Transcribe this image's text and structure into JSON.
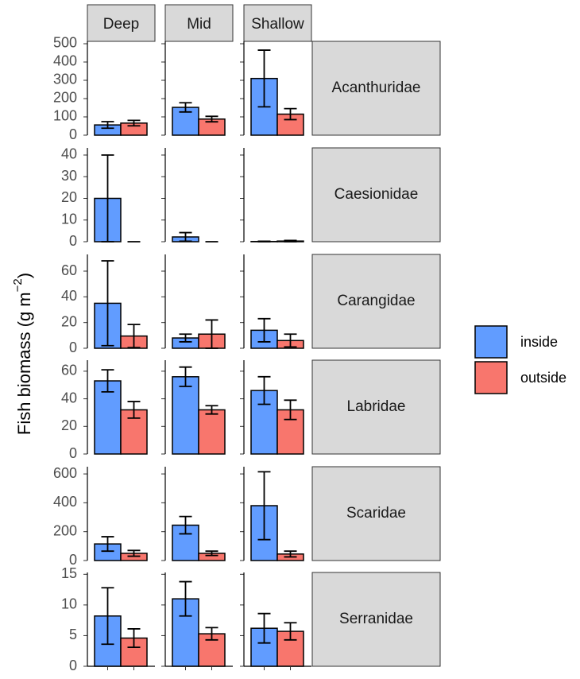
{
  "chart_data": {
    "type": "bar",
    "ylabel": [
      "Fish biomass (g m",
      "−2",
      ")"
    ],
    "columns": [
      "Deep",
      "Mid",
      "Shallow"
    ],
    "series": [
      {
        "name": "inside",
        "color": "#619cff"
      },
      {
        "name": "outside",
        "color": "#f8766d"
      }
    ],
    "panels": [
      {
        "name": "Acanthuridae",
        "ylim": [
          0,
          513
        ],
        "yticks": [
          0,
          100,
          200,
          300,
          400,
          500
        ],
        "values": [
          [
            56,
            152,
            310
          ],
          [
            66,
            88,
            115
          ]
        ],
        "errors": [
          [
            18,
            25,
            155
          ],
          [
            15,
            15,
            30
          ]
        ]
      },
      {
        "name": "Caesionidae",
        "ylim": [
          0,
          43.3
        ],
        "yticks": [
          0,
          10,
          20,
          30,
          40
        ],
        "values": [
          [
            20,
            2.2,
            0.1
          ],
          [
            0,
            0,
            0.3
          ]
        ],
        "errors": [
          [
            20,
            2,
            0.1
          ],
          [
            0,
            0,
            0.3
          ]
        ]
      },
      {
        "name": "Carangidae",
        "ylim": [
          0,
          73
        ],
        "yticks": [
          0,
          20,
          40,
          60
        ],
        "values": [
          [
            35,
            8,
            14
          ],
          [
            9.5,
            11,
            6
          ]
        ],
        "errors": [
          [
            33,
            3,
            9
          ],
          [
            9,
            11,
            5
          ]
        ]
      },
      {
        "name": "Labridae",
        "ylim": [
          0,
          68
        ],
        "yticks": [
          0,
          20,
          40,
          60
        ],
        "values": [
          [
            53,
            56,
            46
          ],
          [
            32,
            32,
            32
          ]
        ],
        "errors": [
          [
            8,
            7,
            10
          ],
          [
            6,
            3,
            7
          ]
        ]
      },
      {
        "name": "Scaridae",
        "ylim": [
          0,
          650
        ],
        "yticks": [
          0,
          200,
          400,
          600
        ],
        "values": [
          [
            115,
            245,
            380
          ],
          [
            50,
            50,
            45
          ]
        ],
        "errors": [
          [
            50,
            60,
            235
          ],
          [
            20,
            15,
            20
          ]
        ]
      },
      {
        "name": "Serranidae",
        "ylim": [
          0,
          15.3
        ],
        "yticks": [
          0,
          5,
          10,
          15
        ],
        "values": [
          [
            8.2,
            11,
            6.2
          ],
          [
            4.6,
            5.3,
            5.7
          ]
        ],
        "errors": [
          [
            4.6,
            2.8,
            2.4
          ],
          [
            1.5,
            1,
            1.4
          ]
        ]
      }
    ]
  }
}
